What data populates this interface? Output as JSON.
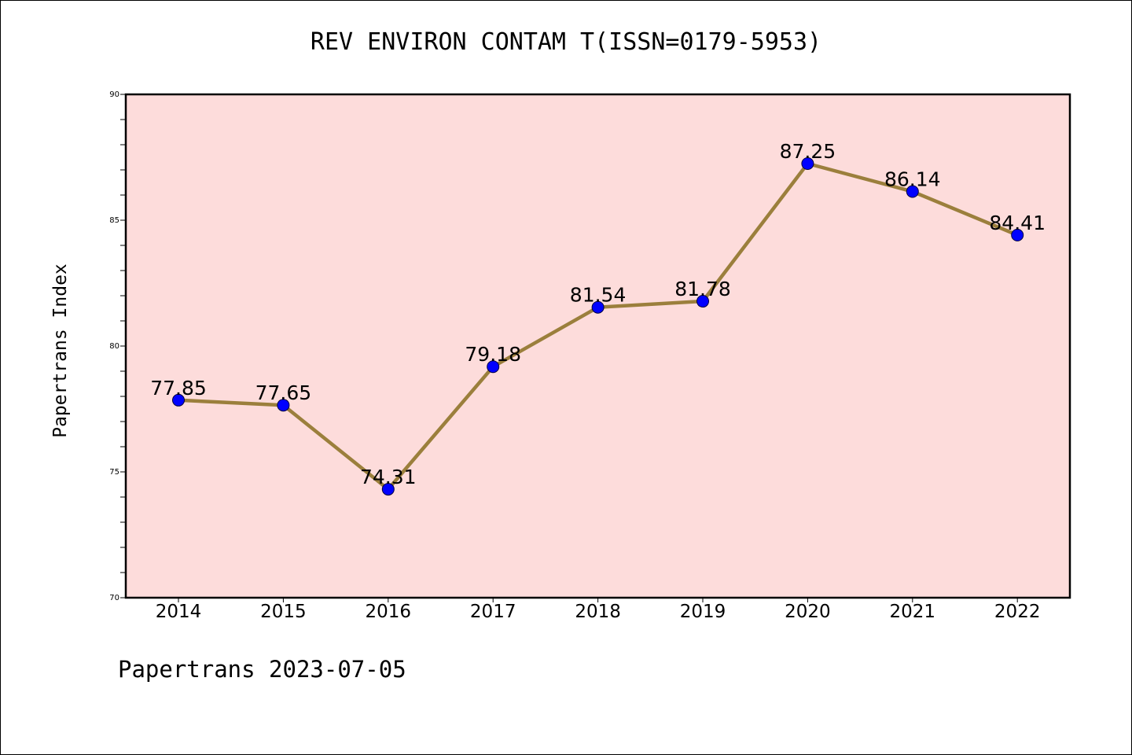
{
  "header": {
    "title": "REV ENVIRON CONTAM T(ISSN=0179-5953)"
  },
  "footer": {
    "note": "Papertrans 2023-07-05"
  },
  "colors": {
    "plot_background": "#fddcdb",
    "line": "#9b7f3c",
    "marker": "#0000ff"
  },
  "chart_data": {
    "type": "line",
    "title": "REV ENVIRON CONTAM T(ISSN=0179-5953)",
    "xlabel": "",
    "ylabel": "Papertrans Index",
    "categories": [
      "2014",
      "2015",
      "2016",
      "2017",
      "2018",
      "2019",
      "2020",
      "2021",
      "2022"
    ],
    "values": [
      77.85,
      77.65,
      74.31,
      79.18,
      81.54,
      81.78,
      87.25,
      86.14,
      84.41
    ],
    "data_labels": [
      "77.85",
      "77.65",
      "74.31",
      "79.18",
      "81.54",
      "81.78",
      "87.25",
      "86.14",
      "84.41"
    ],
    "ylim": [
      70,
      90
    ],
    "yticks": [
      "70",
      "75",
      "80",
      "85",
      "90"
    ],
    "grid": false,
    "legend": "none"
  }
}
